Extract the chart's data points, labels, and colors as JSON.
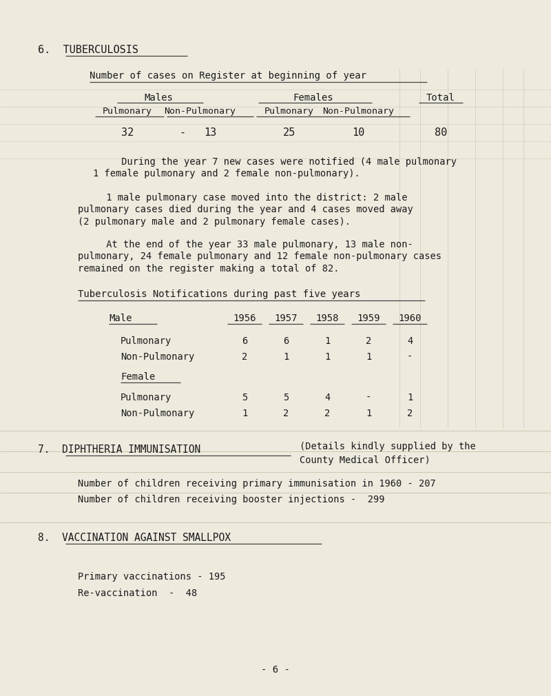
{
  "bg_color": "#eeeade",
  "grid_color": "#c8c4b0",
  "text_color": "#1a1a1a",
  "page_number": "- 6 -",
  "section6_title": "6.  TUBERCULOSIS",
  "register_subtitle": "Number of cases on Register at beginning of year",
  "para1": "     During the year 7 new cases were notified (4 male pulmonary\n1 female pulmonary and 2 female non-pulmonary).",
  "para2": "     1 male pulmonary case moved into the district: 2 male\npulmonary cases died during the year and 4 cases moved away\n(2 pulmonary male and 2 pulmonary female cases).",
  "para3": "     At the end of the year 33 male pulmonary, 13 male non-\npulmonary, 24 female pulmonary and 12 female non-pulmonary cases\nremained on the register making a total of 82.",
  "notif_subtitle": "Tuberculosis Notifications during past five years",
  "notif_years": [
    "1956",
    "1957",
    "1958",
    "1959",
    "1960"
  ],
  "notif_male_pulm": [
    "6",
    "6",
    "1",
    "2",
    "4"
  ],
  "notif_male_nonpulm": [
    "2",
    "1",
    "1",
    "1",
    "-"
  ],
  "notif_female_pulm": [
    "5",
    "5",
    "4",
    "-",
    "1"
  ],
  "notif_female_nonpulm": [
    "1",
    "2",
    "2",
    "1",
    "2"
  ],
  "section7_title": "7.  DIPHTHERIA IMMUNISATION",
  "section7_paren": "(Details kindly supplied by the",
  "section7_paren2": "County Medical Officer)",
  "section7_line1": "Number of children receiving primary immunisation in 1960 - 207",
  "section7_line2": "Number of children receiving booster injections -  299",
  "section8_title": "8.  VACCINATION AGAINST SMALLPOX",
  "section8_line1": "Primary vaccinations - 195",
  "section8_line2": "Re-vaccination  -  48"
}
